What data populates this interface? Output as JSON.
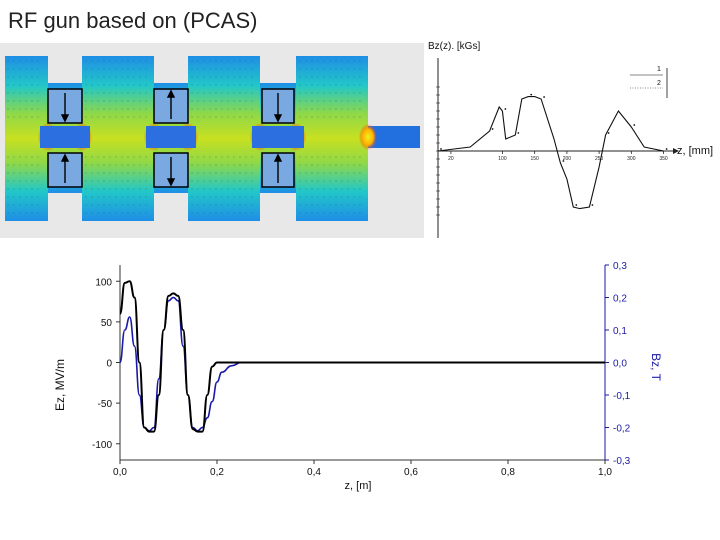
{
  "slide": {
    "title": "RF gun based on (PCAS)"
  },
  "colors": {
    "field_line": "#000000",
    "bz_line": "#1a1aa8",
    "cavity_bg": "#6bc86b",
    "beampipe": "#1e5fe0"
  },
  "chart_data": [
    {
      "type": "line",
      "title": "",
      "ylabel": "Bz(z). [kGs]",
      "xlabel": "z, [mm]",
      "x_ticks": [
        "20",
        "100",
        "150",
        "200",
        "250",
        "300",
        "350"
      ],
      "legend": [
        "1",
        "2"
      ],
      "series": [
        {
          "name": "1",
          "x": [
            0,
            50,
            80,
            95,
            100,
            105,
            120,
            130,
            140,
            150,
            160,
            180,
            190,
            200,
            210,
            220,
            235,
            250,
            260,
            280,
            300,
            320,
            350
          ],
          "y": [
            0,
            0.05,
            0.25,
            0.55,
            0.5,
            0.15,
            0.2,
            0.65,
            0.68,
            0.68,
            0.65,
            0.15,
            -0.15,
            -0.35,
            -0.7,
            -0.72,
            -0.7,
            -0.2,
            0.2,
            0.5,
            0.3,
            0.05,
            0
          ]
        }
      ]
    },
    {
      "type": "line",
      "title": "",
      "xlabel": "z, [m]",
      "ylabel": "Ez, MV/m",
      "y2label": "Bz, T",
      "xlim": [
        0.0,
        1.0
      ],
      "ylim": [
        -120,
        120
      ],
      "y2lim": [
        -0.3,
        0.3
      ],
      "x_ticks": [
        "0,0",
        "0,2",
        "0,4",
        "0,6",
        "0,8",
        "1,0"
      ],
      "y_ticks": [
        "100",
        "50",
        "0",
        "-50",
        "-100"
      ],
      "y2_ticks": [
        "0,3",
        "0,2",
        "0,1",
        "0,0",
        "-0,1",
        "-0,2",
        "-0,3"
      ],
      "series": [
        {
          "name": "Ez",
          "axis": "left",
          "x": [
            0.0,
            0.01,
            0.02,
            0.03,
            0.04,
            0.05,
            0.06,
            0.07,
            0.08,
            0.09,
            0.1,
            0.11,
            0.12,
            0.13,
            0.14,
            0.15,
            0.16,
            0.17,
            0.18,
            0.19,
            0.2,
            0.25,
            0.5,
            1.0
          ],
          "y": [
            60,
            98,
            100,
            80,
            0,
            -80,
            -85,
            -85,
            -40,
            40,
            82,
            85,
            82,
            40,
            -40,
            -82,
            -85,
            -85,
            -40,
            -5,
            0,
            0,
            0,
            0
          ]
        },
        {
          "name": "Bz",
          "axis": "right",
          "x": [
            0.0,
            0.01,
            0.02,
            0.03,
            0.04,
            0.05,
            0.06,
            0.07,
            0.08,
            0.09,
            0.1,
            0.11,
            0.12,
            0.13,
            0.14,
            0.15,
            0.16,
            0.17,
            0.18,
            0.19,
            0.2,
            0.21,
            0.23,
            0.25,
            0.5,
            1.0
          ],
          "y": [
            0.0,
            0.1,
            0.14,
            0.05,
            -0.1,
            -0.2,
            -0.21,
            -0.2,
            -0.05,
            0.1,
            0.19,
            0.2,
            0.19,
            0.05,
            -0.1,
            -0.2,
            -0.21,
            -0.2,
            -0.17,
            -0.12,
            -0.06,
            -0.03,
            -0.01,
            0.0,
            0.0,
            0.0
          ]
        }
      ]
    }
  ]
}
